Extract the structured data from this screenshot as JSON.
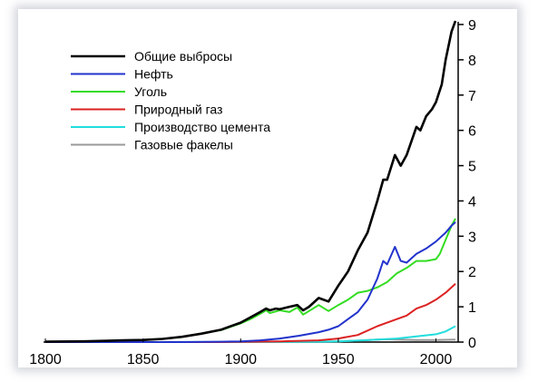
{
  "chart_data": {
    "type": "line",
    "title": "",
    "xlabel": "",
    "ylabel": "",
    "xlim": [
      1800,
      2010
    ],
    "ylim": [
      0,
      9
    ],
    "grid": false,
    "legend": "top-left",
    "x_ticks": [
      "1800",
      "1850",
      "1900",
      "1950",
      "2000"
    ],
    "y_ticks": [
      "0",
      "1",
      "2",
      "3",
      "4",
      "5",
      "6",
      "7",
      "8",
      "9"
    ],
    "series": [
      {
        "name": "Общие выбросы",
        "color": "#000000",
        "points": [
          [
            1800,
            0.01
          ],
          [
            1820,
            0.02
          ],
          [
            1840,
            0.05
          ],
          [
            1850,
            0.06
          ],
          [
            1860,
            0.09
          ],
          [
            1870,
            0.15
          ],
          [
            1880,
            0.24
          ],
          [
            1890,
            0.35
          ],
          [
            1900,
            0.55
          ],
          [
            1905,
            0.7
          ],
          [
            1910,
            0.85
          ],
          [
            1913,
            0.95
          ],
          [
            1915,
            0.9
          ],
          [
            1918,
            0.95
          ],
          [
            1920,
            0.93
          ],
          [
            1925,
            1.0
          ],
          [
            1929,
            1.05
          ],
          [
            1932,
            0.9
          ],
          [
            1935,
            1.0
          ],
          [
            1940,
            1.25
          ],
          [
            1945,
            1.15
          ],
          [
            1950,
            1.6
          ],
          [
            1955,
            2.0
          ],
          [
            1960,
            2.6
          ],
          [
            1965,
            3.1
          ],
          [
            1970,
            4.0
          ],
          [
            1973,
            4.6
          ],
          [
            1975,
            4.6
          ],
          [
            1979,
            5.3
          ],
          [
            1982,
            5.0
          ],
          [
            1985,
            5.3
          ],
          [
            1990,
            6.1
          ],
          [
            1992,
            6.0
          ],
          [
            1995,
            6.4
          ],
          [
            1998,
            6.6
          ],
          [
            2000,
            6.8
          ],
          [
            2003,
            7.3
          ],
          [
            2005,
            8.0
          ],
          [
            2008,
            8.8
          ],
          [
            2010,
            9.1
          ]
        ]
      },
      {
        "name": "Нефть",
        "color": "#2233cc",
        "points": [
          [
            1800,
            0
          ],
          [
            1870,
            0.001
          ],
          [
            1890,
            0.01
          ],
          [
            1900,
            0.02
          ],
          [
            1910,
            0.05
          ],
          [
            1920,
            0.1
          ],
          [
            1930,
            0.18
          ],
          [
            1940,
            0.28
          ],
          [
            1945,
            0.35
          ],
          [
            1950,
            0.45
          ],
          [
            1955,
            0.65
          ],
          [
            1960,
            0.85
          ],
          [
            1965,
            1.2
          ],
          [
            1970,
            1.8
          ],
          [
            1973,
            2.3
          ],
          [
            1975,
            2.2
          ],
          [
            1979,
            2.7
          ],
          [
            1982,
            2.3
          ],
          [
            1985,
            2.25
          ],
          [
            1990,
            2.5
          ],
          [
            1995,
            2.65
          ],
          [
            2000,
            2.85
          ],
          [
            2005,
            3.1
          ],
          [
            2008,
            3.3
          ],
          [
            2010,
            3.4
          ]
        ]
      },
      {
        "name": "Уголь",
        "color": "#33dd22",
        "points": [
          [
            1800,
            0.01
          ],
          [
            1820,
            0.02
          ],
          [
            1840,
            0.05
          ],
          [
            1850,
            0.06
          ],
          [
            1860,
            0.09
          ],
          [
            1870,
            0.15
          ],
          [
            1880,
            0.24
          ],
          [
            1890,
            0.34
          ],
          [
            1900,
            0.53
          ],
          [
            1905,
            0.65
          ],
          [
            1910,
            0.8
          ],
          [
            1913,
            0.9
          ],
          [
            1915,
            0.82
          ],
          [
            1920,
            0.9
          ],
          [
            1925,
            0.85
          ],
          [
            1929,
            0.98
          ],
          [
            1932,
            0.78
          ],
          [
            1935,
            0.88
          ],
          [
            1940,
            1.05
          ],
          [
            1945,
            0.88
          ],
          [
            1950,
            1.05
          ],
          [
            1955,
            1.2
          ],
          [
            1960,
            1.4
          ],
          [
            1965,
            1.45
          ],
          [
            1970,
            1.55
          ],
          [
            1975,
            1.7
          ],
          [
            1980,
            1.95
          ],
          [
            1985,
            2.1
          ],
          [
            1990,
            2.3
          ],
          [
            1995,
            2.3
          ],
          [
            2000,
            2.35
          ],
          [
            2002,
            2.5
          ],
          [
            2005,
            2.9
          ],
          [
            2008,
            3.3
          ],
          [
            2010,
            3.5
          ]
        ]
      },
      {
        "name": "Природный газ",
        "color": "#dd2222",
        "points": [
          [
            1800,
            0
          ],
          [
            1890,
            0.001
          ],
          [
            1900,
            0.005
          ],
          [
            1920,
            0.02
          ],
          [
            1940,
            0.05
          ],
          [
            1950,
            0.1
          ],
          [
            1960,
            0.2
          ],
          [
            1970,
            0.45
          ],
          [
            1975,
            0.55
          ],
          [
            1980,
            0.65
          ],
          [
            1985,
            0.75
          ],
          [
            1990,
            0.95
          ],
          [
            1995,
            1.05
          ],
          [
            2000,
            1.2
          ],
          [
            2005,
            1.4
          ],
          [
            2010,
            1.65
          ]
        ]
      },
      {
        "name": "Производство цемента",
        "color": "#22dddd",
        "points": [
          [
            1800,
            0
          ],
          [
            1920,
            0.005
          ],
          [
            1940,
            0.01
          ],
          [
            1950,
            0.02
          ],
          [
            1960,
            0.04
          ],
          [
            1970,
            0.07
          ],
          [
            1980,
            0.1
          ],
          [
            1990,
            0.16
          ],
          [
            2000,
            0.22
          ],
          [
            2005,
            0.3
          ],
          [
            2010,
            0.45
          ]
        ]
      },
      {
        "name": "Газовые факелы",
        "color": "#999999",
        "points": [
          [
            1800,
            0
          ],
          [
            1920,
            0.002
          ],
          [
            1950,
            0.02
          ],
          [
            1960,
            0.04
          ],
          [
            1970,
            0.07
          ],
          [
            1975,
            0.08
          ],
          [
            1980,
            0.07
          ],
          [
            1990,
            0.06
          ],
          [
            2000,
            0.06
          ],
          [
            2010,
            0.07
          ]
        ]
      }
    ]
  }
}
